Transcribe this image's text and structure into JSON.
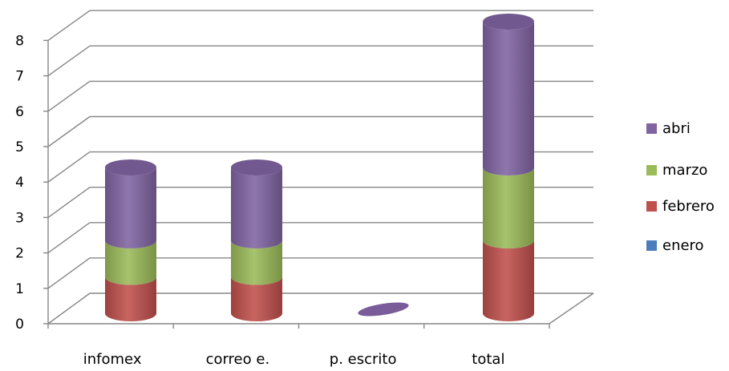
{
  "chart_data": {
    "type": "bar",
    "stacked": true,
    "style": "3d-cylinder",
    "categories": [
      "infomex",
      "correo e.",
      "p. escrito",
      "total"
    ],
    "series": [
      {
        "name": "enero",
        "values": [
          0,
          0,
          0,
          0
        ],
        "color": "#4a7ebb"
      },
      {
        "name": "febrero",
        "values": [
          1,
          1,
          0,
          2
        ],
        "color": "#c0504d"
      },
      {
        "name": "marzo",
        "values": [
          1,
          1,
          0,
          2
        ],
        "color": "#9bbb59"
      },
      {
        "name": "abri",
        "values": [
          2,
          2,
          0,
          4
        ],
        "color": "#8064a2"
      }
    ],
    "ylim": [
      0,
      8
    ],
    "yticks": [
      "0",
      "1",
      "2",
      "3",
      "4",
      "5",
      "6",
      "7",
      "8"
    ],
    "grid": true,
    "legend": "right"
  }
}
